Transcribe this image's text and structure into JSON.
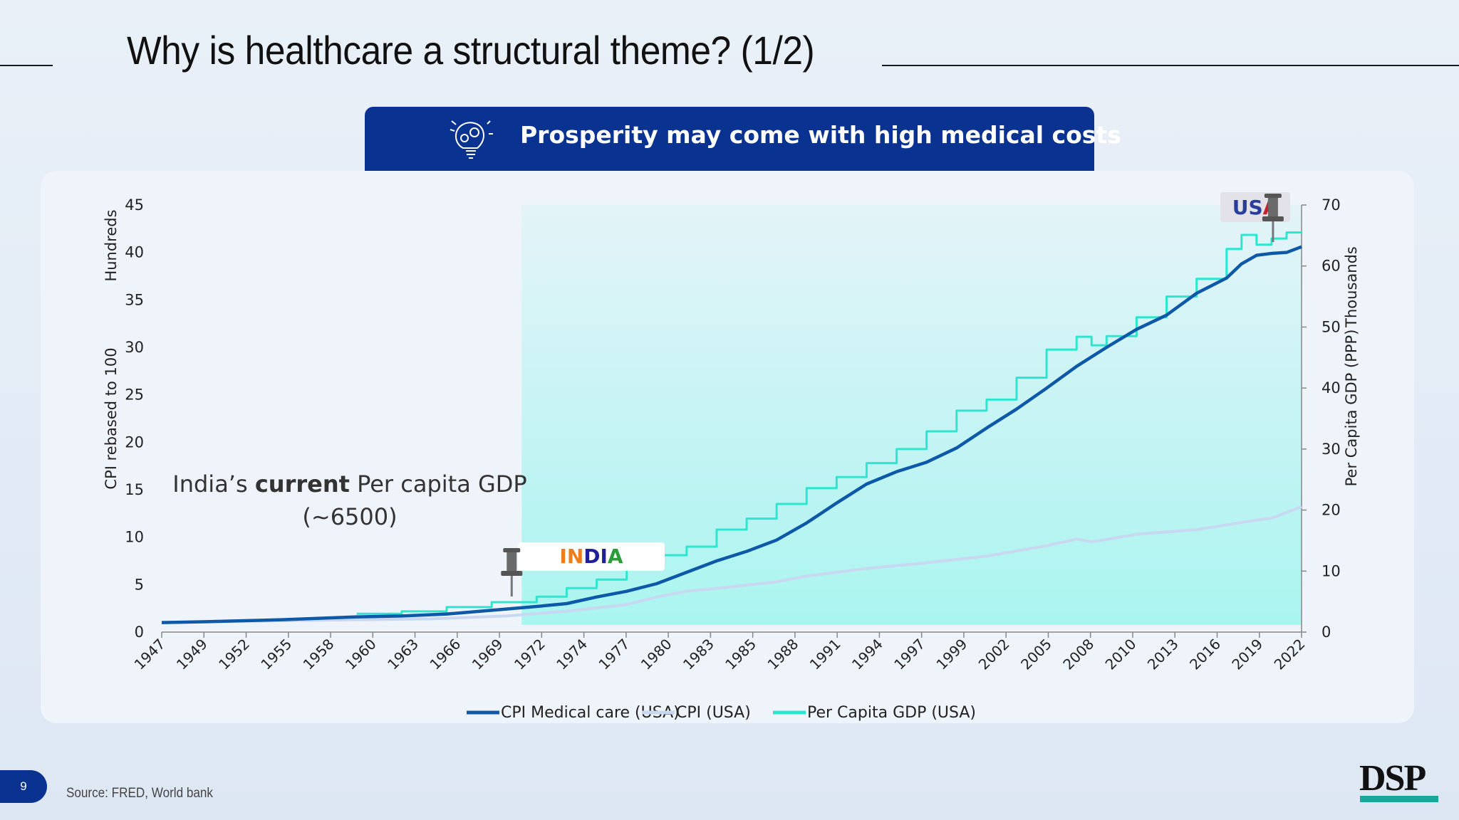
{
  "slide": {
    "title": "Why is healthcare a structural theme? (1/2)",
    "banner": "Prosperity may come with high medical costs",
    "page_number": "9",
    "source": "Source: FRED, World bank",
    "logo": "DSP"
  },
  "annotation": {
    "line1_pre": "India’s ",
    "line1_bold": "current",
    "line1_post": " Per capita GDP",
    "line2": "(~6500)"
  },
  "pins": {
    "india": {
      "label": "INDIA",
      "colors": [
        "#f07d1a",
        "#1f1f9a",
        "#2a9d3a"
      ],
      "year": 1971,
      "gdp": 6.5
    },
    "usa": {
      "label": "USA",
      "colors": [
        "#2a3d9a",
        "#c8202a"
      ],
      "year": 2021
    }
  },
  "colors": {
    "cpi_medical": "#0e58a8",
    "cpi": "#c7d8f0",
    "gdp": "#2ee6cf",
    "banner": "#0a3391",
    "india_fill": "#a6f5ef"
  },
  "chart_data": {
    "type": "line",
    "title": "",
    "y_left_label": "CPI rebased to 100",
    "y_left_units": "Hundreds",
    "y_right_label": "Per Capita GDP (PPP)",
    "y_right_units": "Thousands",
    "y_left_range": [
      0,
      45
    ],
    "y_left_ticks": [
      0,
      5,
      10,
      15,
      20,
      25,
      30,
      35,
      40,
      45
    ],
    "y_right_range": [
      0,
      70
    ],
    "y_right_ticks": [
      0,
      10,
      20,
      30,
      40,
      50,
      60,
      70
    ],
    "x_range": [
      1947,
      2023
    ],
    "x_tick_labels": [
      "1947",
      "1949",
      "1952",
      "1955",
      "1958",
      "1960",
      "1963",
      "1966",
      "1969",
      "1972",
      "1974",
      "1977",
      "1980",
      "1983",
      "1985",
      "1988",
      "1991",
      "1994",
      "1997",
      "1999",
      "2002",
      "2005",
      "2008",
      "2010",
      "2013",
      "2016",
      "2019",
      "2022"
    ],
    "legend_position": "bottom",
    "series": [
      {
        "name": "CPI Medical care (USA)",
        "axis": "left",
        "x": [
          1947,
          1950,
          1955,
          1960,
          1963,
          1966,
          1969,
          1972,
          1974,
          1976,
          1978,
          1980,
          1982,
          1984,
          1986,
          1988,
          1990,
          1992,
          1994,
          1996,
          1998,
          2000,
          2002,
          2004,
          2006,
          2008,
          2010,
          2012,
          2014,
          2016,
          2018,
          2019,
          2020,
          2021,
          2022,
          2023
        ],
        "y": [
          1.0,
          1.1,
          1.3,
          1.6,
          1.7,
          1.9,
          2.3,
          2.7,
          3.0,
          3.7,
          4.3,
          5.1,
          6.3,
          7.5,
          8.5,
          9.7,
          11.5,
          13.6,
          15.6,
          16.9,
          17.9,
          19.4,
          21.5,
          23.5,
          25.7,
          28.0,
          30.0,
          31.9,
          33.4,
          35.7,
          37.3,
          38.8,
          39.7,
          39.9,
          40.0,
          40.6
        ]
      },
      {
        "name": "CPI (USA)",
        "axis": "left",
        "x": [
          1947,
          1955,
          1960,
          1965,
          1970,
          1974,
          1978,
          1980,
          1982,
          1984,
          1988,
          1990,
          1994,
          1998,
          2002,
          2006,
          2008,
          2009,
          2012,
          2016,
          2020,
          2021,
          2022,
          2023
        ],
        "y": [
          1.0,
          1.2,
          1.3,
          1.4,
          1.7,
          2.2,
          2.9,
          3.7,
          4.3,
          4.6,
          5.3,
          5.9,
          6.7,
          7.3,
          8.0,
          9.1,
          9.8,
          9.5,
          10.3,
          10.8,
          11.8,
          12.0,
          12.6,
          13.2
        ]
      },
      {
        "name": "Per Capita GDP (USA)",
        "axis": "right",
        "step": true,
        "x": [
          1960,
          1963,
          1966,
          1969,
          1972,
          1974,
          1976,
          1978,
          1980,
          1982,
          1984,
          1986,
          1988,
          1990,
          1992,
          1994,
          1996,
          1998,
          2000,
          2002,
          2004,
          2006,
          2008,
          2009,
          2010,
          2012,
          2014,
          2016,
          2018,
          2019,
          2020,
          2021,
          2022
        ],
        "y": [
          3.0,
          3.4,
          4.1,
          4.9,
          5.8,
          7.2,
          8.6,
          10.6,
          12.6,
          14.0,
          16.8,
          18.6,
          21.0,
          23.6,
          25.4,
          27.7,
          30.0,
          32.9,
          36.3,
          38.1,
          41.7,
          46.3,
          48.4,
          47.0,
          48.5,
          51.6,
          55.0,
          57.9,
          62.8,
          65.1,
          63.5,
          64.5,
          65.5
        ]
      }
    ]
  }
}
